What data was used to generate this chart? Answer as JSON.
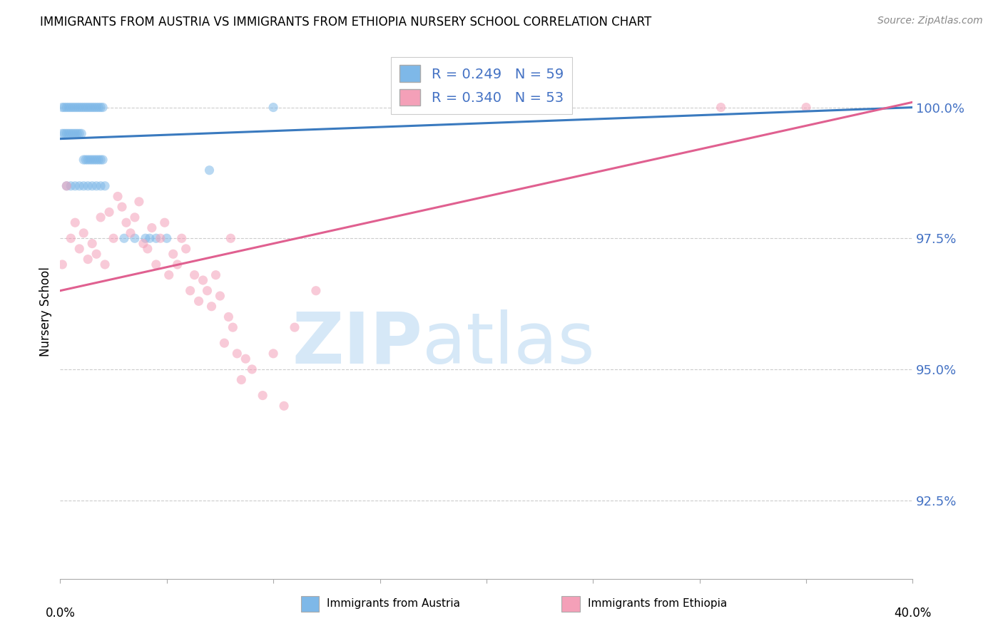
{
  "title": "IMMIGRANTS FROM AUSTRIA VS IMMIGRANTS FROM ETHIOPIA NURSERY SCHOOL CORRELATION CHART",
  "source": "Source: ZipAtlas.com",
  "ylabel": "Nursery School",
  "yticks": [
    92.5,
    95.0,
    97.5,
    100.0
  ],
  "ytick_labels": [
    "92.5%",
    "95.0%",
    "97.5%",
    "100.0%"
  ],
  "ylim": [
    91.0,
    101.2
  ],
  "xlim": [
    0.0,
    40.0
  ],
  "austria_color": "#7eb8e8",
  "ethiopia_color": "#f4a0b8",
  "austria_line_color": "#3a7abf",
  "ethiopia_line_color": "#e06090",
  "austria_R": 0.249,
  "austria_N": 59,
  "ethiopia_R": 0.34,
  "ethiopia_N": 53,
  "watermark_zip": "ZIP",
  "watermark_atlas": "atlas",
  "watermark_color": "#d6e8f7",
  "austria_x": [
    0.1,
    0.2,
    0.3,
    0.4,
    0.5,
    0.6,
    0.7,
    0.8,
    0.9,
    1.0,
    1.1,
    1.2,
    1.3,
    1.4,
    1.5,
    1.6,
    1.7,
    1.8,
    1.9,
    2.0,
    0.1,
    0.2,
    0.3,
    0.4,
    0.5,
    0.6,
    0.7,
    0.8,
    0.9,
    1.0,
    1.1,
    1.2,
    1.3,
    1.4,
    1.5,
    1.6,
    1.7,
    1.8,
    1.9,
    2.0,
    0.3,
    0.5,
    0.7,
    0.9,
    1.1,
    1.3,
    1.5,
    1.7,
    1.9,
    2.1,
    3.0,
    3.5,
    4.0,
    4.2,
    4.5,
    5.0,
    7.0,
    10.0,
    17.0
  ],
  "austria_y": [
    100.0,
    100.0,
    100.0,
    100.0,
    100.0,
    100.0,
    100.0,
    100.0,
    100.0,
    100.0,
    100.0,
    100.0,
    100.0,
    100.0,
    100.0,
    100.0,
    100.0,
    100.0,
    100.0,
    100.0,
    99.5,
    99.5,
    99.5,
    99.5,
    99.5,
    99.5,
    99.5,
    99.5,
    99.5,
    99.5,
    99.0,
    99.0,
    99.0,
    99.0,
    99.0,
    99.0,
    99.0,
    99.0,
    99.0,
    99.0,
    98.5,
    98.5,
    98.5,
    98.5,
    98.5,
    98.5,
    98.5,
    98.5,
    98.5,
    98.5,
    97.5,
    97.5,
    97.5,
    97.5,
    97.5,
    97.5,
    98.8,
    100.0,
    100.0
  ],
  "ethiopia_x": [
    0.1,
    0.3,
    0.5,
    0.7,
    0.9,
    1.1,
    1.3,
    1.5,
    1.7,
    1.9,
    2.1,
    2.3,
    2.5,
    2.7,
    2.9,
    3.1,
    3.3,
    3.5,
    3.7,
    3.9,
    4.1,
    4.3,
    4.5,
    4.7,
    4.9,
    5.1,
    5.3,
    5.5,
    5.7,
    5.9,
    6.1,
    6.3,
    6.5,
    6.7,
    6.9,
    7.1,
    7.3,
    7.5,
    7.7,
    7.9,
    8.1,
    8.3,
    8.5,
    8.7,
    9.0,
    9.5,
    10.0,
    10.5,
    11.0,
    12.0,
    31.0,
    35.0,
    8.0
  ],
  "ethiopia_y": [
    97.0,
    98.5,
    97.5,
    97.8,
    97.3,
    97.6,
    97.1,
    97.4,
    97.2,
    97.9,
    97.0,
    98.0,
    97.5,
    98.3,
    98.1,
    97.8,
    97.6,
    97.9,
    98.2,
    97.4,
    97.3,
    97.7,
    97.0,
    97.5,
    97.8,
    96.8,
    97.2,
    97.0,
    97.5,
    97.3,
    96.5,
    96.8,
    96.3,
    96.7,
    96.5,
    96.2,
    96.8,
    96.4,
    95.5,
    96.0,
    95.8,
    95.3,
    94.8,
    95.2,
    95.0,
    94.5,
    95.3,
    94.3,
    95.8,
    96.5,
    100.0,
    100.0,
    97.5
  ],
  "blue_line_x0": 0.0,
  "blue_line_y0": 99.4,
  "blue_line_x1": 40.0,
  "blue_line_y1": 100.0,
  "pink_line_x0": 0.0,
  "pink_line_y0": 96.5,
  "pink_line_x1": 40.0,
  "pink_line_y1": 100.1
}
